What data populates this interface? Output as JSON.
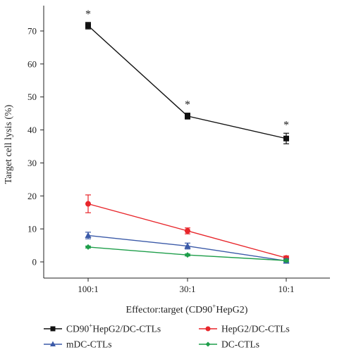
{
  "chart_data": {
    "type": "line",
    "xlabel_parts": [
      "Effector:target (CD90",
      "+",
      "HepG2)"
    ],
    "ylabel": "Target cell lysis (%)",
    "categories": [
      "100:1",
      "30:1",
      "10:1"
    ],
    "ylim": [
      -5,
      76
    ],
    "yticks": [
      0,
      10,
      20,
      30,
      40,
      50,
      60,
      70
    ],
    "grid": false,
    "legend_position": "bottom",
    "series": [
      {
        "name_parts": [
          "CD90",
          "+",
          "HepG2/DC-CTLs"
        ],
        "color": "#111111",
        "marker": "square",
        "values": [
          71.6,
          44.2,
          37.4
        ],
        "errors": [
          1.0,
          0.9,
          1.6
        ],
        "significance": [
          "*",
          "*",
          "*"
        ]
      },
      {
        "name_parts": [
          "HepG2/DC-CTLs"
        ],
        "color": "#e8262b",
        "marker": "circle",
        "values": [
          17.6,
          9.4,
          1.2
        ],
        "errors": [
          2.7,
          0.9,
          0.6
        ]
      },
      {
        "name_parts": [
          "mDC-CTLs"
        ],
        "color": "#3b5aa8",
        "marker": "triangle",
        "values": [
          8.0,
          4.8,
          0.3
        ],
        "errors": [
          1.0,
          0.9,
          0.7
        ]
      },
      {
        "name_parts": [
          "DC-CTLs"
        ],
        "color": "#1e9e4a",
        "marker": "diamond",
        "values": [
          4.5,
          2.1,
          0.4
        ],
        "errors": [
          0.3,
          0.3,
          0.3
        ]
      }
    ]
  }
}
